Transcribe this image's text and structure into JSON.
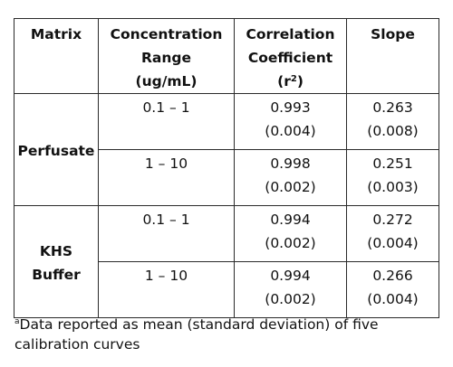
{
  "table": {
    "headers": {
      "matrix": "Matrix",
      "concentration": [
        "Concentration",
        "Range",
        "(ug/mL)"
      ],
      "correlation": [
        "Correlation",
        "Coefficient"
      ],
      "correlation_symbol": "r",
      "correlation_symbol_sup": "2",
      "slope": "Slope"
    },
    "groups": [
      {
        "matrix": [
          "Perfusate"
        ],
        "rows": [
          {
            "range": "0.1 – 1",
            "r2_mean": "0.993",
            "r2_sd": "(0.004)",
            "slope_mean": "0.263",
            "slope_sd": "(0.008)"
          },
          {
            "range": "1 – 10",
            "r2_mean": "0.998",
            "r2_sd": "(0.002)",
            "slope_mean": "0.251",
            "slope_sd": "(0.003)"
          }
        ]
      },
      {
        "matrix": [
          "KHS",
          "Buffer"
        ],
        "rows": [
          {
            "range": "0.1 – 1",
            "r2_mean": "0.994",
            "r2_sd": "(0.002)",
            "slope_mean": "0.272",
            "slope_sd": "(0.004)"
          },
          {
            "range": "1 – 10",
            "r2_mean": "0.994",
            "r2_sd": "(0.002)",
            "slope_mean": "0.266",
            "slope_sd": "(0.004)"
          }
        ]
      }
    ]
  },
  "footnote": {
    "marker": "a",
    "text": "Data reported as mean (standard deviation) of five calibration curves"
  }
}
